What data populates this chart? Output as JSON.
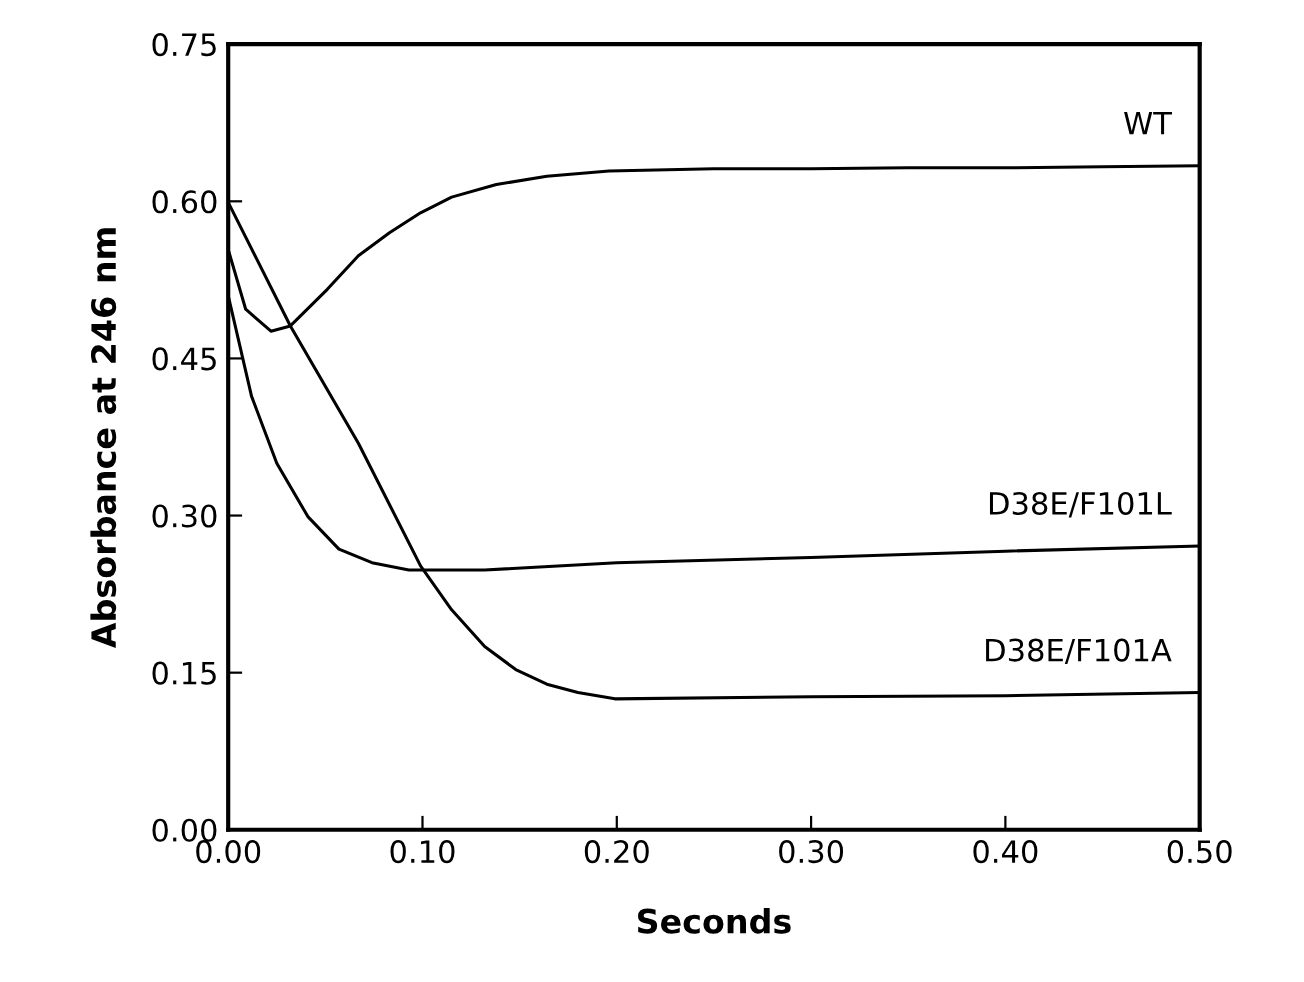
{
  "chart_data": {
    "type": "line",
    "xlabel": "Seconds",
    "ylabel": "Absorbance at 246 nm",
    "xlim": [
      0,
      0.5
    ],
    "xticks": [
      {
        "value": 0,
        "label": "0.00"
      },
      {
        "value": 0.1,
        "label": "0.10"
      },
      {
        "value": 0.2,
        "label": "0.20"
      },
      {
        "value": 0.3,
        "label": "0.30"
      },
      {
        "value": 0.4,
        "label": "0.40"
      },
      {
        "value": 0.5,
        "label": "0.50"
      }
    ],
    "ylim": [
      0,
      0.75
    ],
    "yticks": [
      {
        "value": 0,
        "label": "0.00"
      },
      {
        "value": 0.15,
        "label": "0.15"
      },
      {
        "value": 0.3,
        "label": "0.30"
      },
      {
        "value": 0.45,
        "label": "0.45"
      },
      {
        "value": 0.6,
        "label": "0.60"
      },
      {
        "value": 0.75,
        "label": "0.75"
      }
    ],
    "grid": false,
    "legend": false,
    "series": [
      {
        "name": "WT",
        "color": "#000000",
        "x": [
          0,
          0.009,
          0.022,
          0.032,
          0.051,
          0.067,
          0.083,
          0.099,
          0.115,
          0.138,
          0.164,
          0.196,
          0.25,
          0.3,
          0.35,
          0.4,
          0.45,
          0.5
        ],
        "values": [
          0.554,
          0.497,
          0.476,
          0.481,
          0.516,
          0.548,
          0.57,
          0.589,
          0.604,
          0.616,
          0.624,
          0.629,
          0.631,
          0.631,
          0.632,
          0.632,
          0.633,
          0.634
        ]
      },
      {
        "name": "D38E/F101L",
        "color": "#000000",
        "x": [
          0,
          0.012,
          0.025,
          0.041,
          0.057,
          0.074,
          0.093,
          0.132,
          0.2,
          0.3,
          0.4,
          0.5
        ],
        "values": [
          0.51,
          0.414,
          0.35,
          0.299,
          0.268,
          0.255,
          0.248,
          0.248,
          0.255,
          0.26,
          0.266,
          0.271
        ]
      },
      {
        "name": "D38E/F101A",
        "color": "#000000",
        "x": [
          0,
          0.032,
          0.067,
          0.099,
          0.115,
          0.132,
          0.148,
          0.164,
          0.18,
          0.199,
          0.3,
          0.4,
          0.5
        ],
        "values": [
          0.599,
          0.481,
          0.369,
          0.252,
          0.21,
          0.175,
          0.153,
          0.139,
          0.131,
          0.125,
          0.127,
          0.128,
          0.131
        ]
      }
    ]
  }
}
